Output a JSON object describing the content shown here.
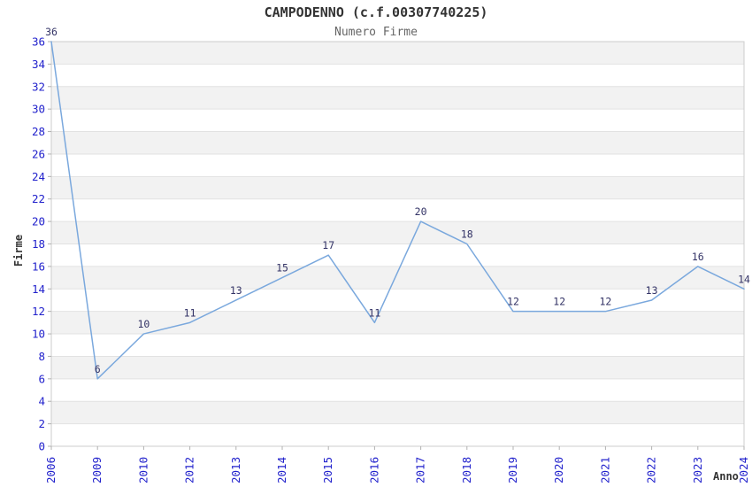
{
  "title": "CAMPODENNO (c.f.00307740225)",
  "subtitle": "Numero Firme",
  "chart_data": {
    "type": "line",
    "categories": [
      "2006",
      "2009",
      "2010",
      "2012",
      "2013",
      "2014",
      "2015",
      "2016",
      "2017",
      "2018",
      "2019",
      "2020",
      "2021",
      "2022",
      "2023",
      "2024"
    ],
    "values": [
      36,
      6,
      10,
      11,
      13,
      15,
      17,
      11,
      20,
      18,
      12,
      12,
      12,
      13,
      16,
      14
    ],
    "title": "CAMPODENNO (c.f.00307740225)",
    "subtitle": "Numero Firme",
    "xlabel": "Anno",
    "ylabel": "Firme",
    "ylim": [
      0,
      36
    ],
    "ytick_step": 2,
    "legend": "none",
    "grid": "horizontal gridlines with alternating shaded bands",
    "data_labels": true,
    "colors": {
      "line": "#7aa8dd",
      "data_label": "#333366",
      "tick_label": "#2222cc",
      "band_fill": "#f2f2f2",
      "gridline": "#e2e2e2",
      "plot_border": "#cccccc",
      "tick_mark": "#b0b0b0",
      "title": "#333333",
      "subtitle": "#666666",
      "axis_title": "#333333"
    }
  }
}
